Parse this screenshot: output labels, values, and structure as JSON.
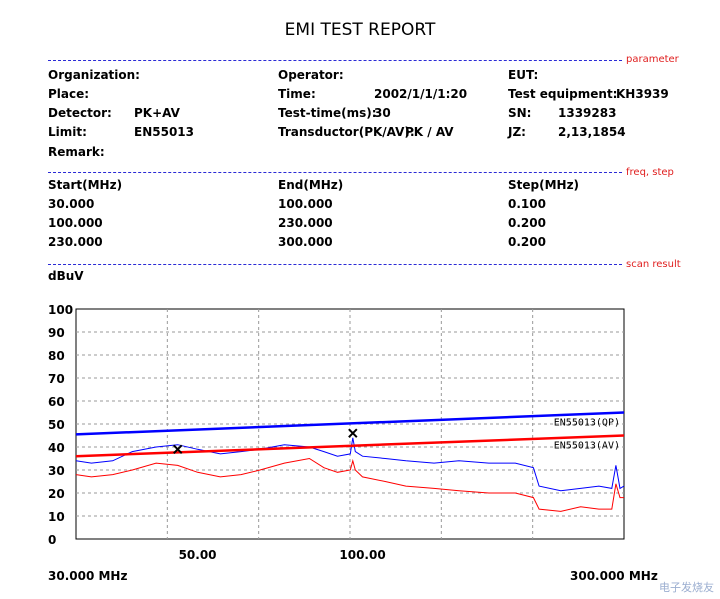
{
  "report": {
    "title": "EMI TEST REPORT",
    "sections": {
      "parameter": "parameter",
      "freq": "freq, step",
      "scan": "scan result"
    },
    "params": {
      "organization_label": "Organization:",
      "place_label": "Place:",
      "detector_label": "Detector:",
      "detector_value": "PK+AV",
      "limit_label": "Limit:",
      "limit_value": "EN55013",
      "remark_label": "Remark:",
      "operator_label": "Operator:",
      "time_label": "Time:",
      "time_value": "2002/1/1/1:20",
      "testtime_label": "Test-time(ms):",
      "testtime_value": "30",
      "transductor_label": "Transductor(PK/AV):",
      "transductor_value": "PK  /  AV",
      "eut_label": "EUT:",
      "equipment_label": "Test equipment:",
      "equipment_value": "KH3939",
      "sn_label": "SN:",
      "sn_value": "1339283",
      "jz_label": "JZ:",
      "jz_value": "2,13,1854"
    },
    "freq_table": {
      "headers": [
        "Start(MHz)",
        "End(MHz)",
        "Step(MHz)"
      ],
      "rows": [
        [
          "30.000",
          "100.000",
          "0.100"
        ],
        [
          "100.000",
          "230.000",
          "0.200"
        ],
        [
          "230.000",
          "300.000",
          "0.200"
        ]
      ]
    },
    "footer": {
      "left": "30.000 MHz",
      "right": "300.000 MHz"
    },
    "watermark": "电子发烧友"
  },
  "chart_data": {
    "type": "line",
    "ylabel": "dBuV",
    "xscale": "log",
    "xlim": [
      30,
      300
    ],
    "ylim": [
      0,
      100
    ],
    "yticks": [
      0,
      10,
      20,
      30,
      40,
      50,
      60,
      70,
      80,
      90,
      100
    ],
    "xticks": [
      {
        "value": 50,
        "label": "50.00"
      },
      {
        "value": 100,
        "label": "100.00"
      }
    ],
    "grid": true,
    "limit_lines": [
      {
        "name": "EN55013(QP)",
        "color": "#0000ff",
        "x": [
          30,
          300
        ],
        "y": [
          45.5,
          55
        ]
      },
      {
        "name": "EN55013(AV)",
        "color": "#ff0000",
        "x": [
          30,
          300
        ],
        "y": [
          36,
          45
        ]
      }
    ],
    "series": [
      {
        "color": "#0000ff",
        "x": [
          30,
          32,
          35,
          38,
          42,
          46,
          50,
          55,
          60,
          65,
          72,
          80,
          85,
          90,
          95,
          96,
          97,
          100,
          110,
          120,
          135,
          150,
          170,
          190,
          205,
          210,
          230,
          250,
          270,
          285,
          290,
          295,
          300
        ],
        "y": [
          34,
          33,
          34,
          38,
          40,
          41,
          39,
          37,
          38,
          39,
          41,
          40,
          38,
          36,
          37,
          44,
          38,
          36,
          35,
          34,
          33,
          34,
          33,
          33,
          31,
          23,
          21,
          22,
          23,
          22,
          32,
          22,
          23
        ]
      },
      {
        "color": "#ff0000",
        "x": [
          30,
          32,
          35,
          38,
          42,
          46,
          50,
          55,
          60,
          65,
          72,
          80,
          85,
          90,
          95,
          96,
          97,
          100,
          110,
          120,
          135,
          150,
          170,
          190,
          205,
          210,
          230,
          250,
          270,
          285,
          290,
          295,
          300
        ],
        "y": [
          28,
          27,
          28,
          30,
          33,
          32,
          29,
          27,
          28,
          30,
          33,
          35,
          31,
          29,
          30,
          34,
          30,
          27,
          25,
          23,
          22,
          21,
          20,
          20,
          18,
          13,
          12,
          14,
          13,
          13,
          24,
          18,
          18
        ]
      }
    ],
    "markers": [
      {
        "x": 46,
        "y": 39
      },
      {
        "x": 96,
        "y": 46
      }
    ]
  }
}
